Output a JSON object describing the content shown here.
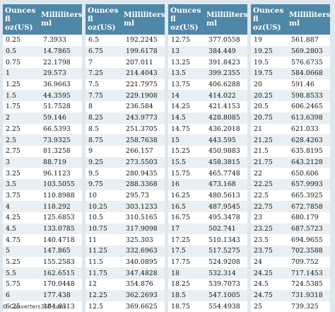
{
  "headers": {
    "oz": "Ounces fl oz(US)",
    "ml": "Milliliters ml"
  },
  "columns": [
    {
      "rows": [
        [
          "0.25",
          "7.3933"
        ],
        [
          "0.5",
          "14.7865"
        ],
        [
          "0.75",
          "22.1798"
        ],
        [
          "1",
          "29.573"
        ],
        [
          "1.25",
          "36.9663"
        ],
        [
          "1.5",
          "44.3595"
        ],
        [
          "1.75",
          "51.7528"
        ],
        [
          "2",
          "59.146"
        ],
        [
          "2.25",
          "66.5393"
        ],
        [
          "2.5",
          "73.9325"
        ],
        [
          "2.75",
          "81.3258"
        ],
        [
          "3",
          "88.719"
        ],
        [
          "3.25",
          "96.1123"
        ],
        [
          "3.5",
          "103.5055"
        ],
        [
          "3.75",
          "110.8988"
        ],
        [
          "4",
          "118.292"
        ],
        [
          "4.25",
          "125.6853"
        ],
        [
          "4.5",
          "133.0785"
        ],
        [
          "4.75",
          "140.4718"
        ],
        [
          "5",
          "147.865"
        ],
        [
          "5.25",
          "155.2583"
        ],
        [
          "5.5",
          "162.6515"
        ],
        [
          "5.75",
          "170.0448"
        ],
        [
          "6",
          "177.438"
        ],
        [
          "6.25",
          "184.8313"
        ]
      ]
    },
    {
      "rows": [
        [
          "6.5",
          "192.2245"
        ],
        [
          "6.75",
          "199.6178"
        ],
        [
          "7",
          "207.011"
        ],
        [
          "7.25",
          "214.4043"
        ],
        [
          "7.5",
          "221.7975"
        ],
        [
          "7.75",
          "229.1908"
        ],
        [
          "8",
          "236.584"
        ],
        [
          "8.25",
          "243.9773"
        ],
        [
          "8.5",
          "251.3705"
        ],
        [
          "8.75",
          "258.7638"
        ],
        [
          "9",
          "266.157"
        ],
        [
          "9.25",
          "273.5503"
        ],
        [
          "9.5",
          "280.9435"
        ],
        [
          "9.75",
          "288.3368"
        ],
        [
          "10",
          "295.73"
        ],
        [
          "10.25",
          "303.1233"
        ],
        [
          "10.5",
          "310.5165"
        ],
        [
          "10.75",
          "317.9098"
        ],
        [
          "11",
          "325.303"
        ],
        [
          "11.25",
          "332.6963"
        ],
        [
          "11.5",
          "340.0895"
        ],
        [
          "11.75",
          "347.4828"
        ],
        [
          "12",
          "354.876"
        ],
        [
          "12.25",
          "362.2693"
        ],
        [
          "12.5",
          "369.6625"
        ]
      ]
    },
    {
      "rows": [
        [
          "12.75",
          "377.0558"
        ],
        [
          "13",
          "384.449"
        ],
        [
          "13.25",
          "391.8423"
        ],
        [
          "13.5",
          "399.2355"
        ],
        [
          "13.75",
          "406.6288"
        ],
        [
          "14",
          "414.022"
        ],
        [
          "14.25",
          "421.4153"
        ],
        [
          "14.5",
          "428.8085"
        ],
        [
          "14.75",
          "436.2018"
        ],
        [
          "15",
          "443.595"
        ],
        [
          "15.25",
          "450.9883"
        ],
        [
          "15.5",
          "458.3815"
        ],
        [
          "15.75",
          "465.7748"
        ],
        [
          "16",
          "473.168"
        ],
        [
          "16.25",
          "480.5613"
        ],
        [
          "16.5",
          "487.9545"
        ],
        [
          "16.75",
          "495.3478"
        ],
        [
          "17",
          "502.741"
        ],
        [
          "17.25",
          "510.1343"
        ],
        [
          "17.5",
          "517.5275"
        ],
        [
          "17.75",
          "524.9208"
        ],
        [
          "18",
          "532.314"
        ],
        [
          "18.25",
          "539.7073"
        ],
        [
          "18.5",
          "547.1005"
        ],
        [
          "18.75",
          "554.4938"
        ]
      ]
    },
    {
      "rows": [
        [
          "19",
          "561.887"
        ],
        [
          "19.25",
          "569.2803"
        ],
        [
          "19.5",
          "576.6735"
        ],
        [
          "19.75",
          "584.0668"
        ],
        [
          "20",
          "591.46"
        ],
        [
          "20.25",
          "598.8533"
        ],
        [
          "20.5",
          "606.2465"
        ],
        [
          "20.75",
          "613.6398"
        ],
        [
          "21",
          "621.033"
        ],
        [
          "21.25",
          "628.4263"
        ],
        [
          "21.5",
          "635.8195"
        ],
        [
          "21.75",
          "643.2128"
        ],
        [
          "22",
          "650.606"
        ],
        [
          "22.25",
          "657.9993"
        ],
        [
          "22.5",
          "665.3925"
        ],
        [
          "22.75",
          "672.7858"
        ],
        [
          "23",
          "680.179"
        ],
        [
          "23.25",
          "687.5723"
        ],
        [
          "23.5",
          "694.9655"
        ],
        [
          "23.75",
          "702.3588"
        ],
        [
          "24",
          "709.752"
        ],
        [
          "24.25",
          "717.1453"
        ],
        [
          "24.5",
          "724.5385"
        ],
        [
          "24.75",
          "731.9318"
        ],
        [
          "25",
          "739.325"
        ]
      ]
    }
  ],
  "footer": "© Converters360.com"
}
